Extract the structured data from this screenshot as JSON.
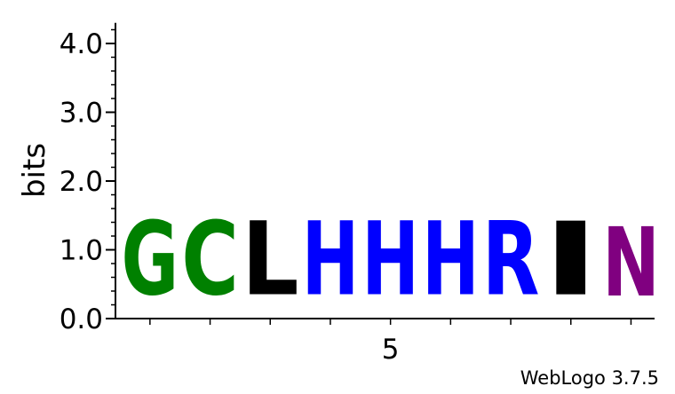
{
  "chart_data": {
    "type": "sequence-logo",
    "ylabel": "bits",
    "ylim": [
      0,
      4.3
    ],
    "y_ticks": [
      {
        "value": 0,
        "label": "0.0"
      },
      {
        "value": 1,
        "label": "1.0"
      },
      {
        "value": 2,
        "label": "2.0"
      },
      {
        "value": 3,
        "label": "3.0"
      },
      {
        "value": 4,
        "label": "4.0"
      }
    ],
    "x_tick_labels": [
      {
        "position": 5,
        "label": "5"
      }
    ],
    "positions": [
      {
        "position": 1,
        "letter": "G",
        "bits": 1.72,
        "color": "#008000"
      },
      {
        "position": 2,
        "letter": "C",
        "bits": 1.72,
        "color": "#008000"
      },
      {
        "position": 3,
        "letter": "L",
        "bits": 1.72,
        "color": "#000000"
      },
      {
        "position": 4,
        "letter": "H",
        "bits": 1.72,
        "color": "#0000ff"
      },
      {
        "position": 5,
        "letter": "H",
        "bits": 1.72,
        "color": "#0000ff"
      },
      {
        "position": 6,
        "letter": "H",
        "bits": 1.72,
        "color": "#0000ff"
      },
      {
        "position": 7,
        "letter": "R",
        "bits": 1.72,
        "color": "#0000ff"
      },
      {
        "position": 8,
        "letter": "I",
        "bits": 1.72,
        "color": "#000000"
      },
      {
        "position": 9,
        "letter": "N",
        "bits": 1.62,
        "color": "#800080"
      }
    ]
  },
  "footer": "WebLogo 3.7.5"
}
